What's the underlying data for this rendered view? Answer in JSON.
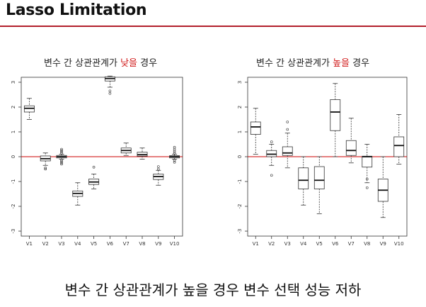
{
  "slide": {
    "title": "Lasso Limitation",
    "caption": "변수 간 상관관계가 높을 경우 변수 선택 성능 저하"
  },
  "accent_color": "#b3202c",
  "chart_data": [
    {
      "type": "box",
      "title_prefix": "변수 간 상관관계가 ",
      "title_highlight": "낮을",
      "title_suffix": " 경우",
      "categories": [
        "V1",
        "V2",
        "V3",
        "V4",
        "V5",
        "V6",
        "V7",
        "V8",
        "V9",
        "V10"
      ],
      "yticks": [
        -3,
        -2,
        -1,
        0,
        1,
        2,
        3
      ],
      "ylim": [
        -3.2,
        3.2
      ],
      "reference_line": 0,
      "reference_color": "#cc0000",
      "boxes": [
        {
          "whislo": 1.5,
          "q1": 1.8,
          "med": 1.95,
          "q3": 2.05,
          "whishi": 2.35,
          "fliers": []
        },
        {
          "whislo": -0.35,
          "q1": -0.17,
          "med": -0.08,
          "q3": 0.03,
          "whishi": 0.15,
          "fliers": [
            -0.45,
            -0.5
          ]
        },
        {
          "whislo": -0.1,
          "q1": -0.05,
          "med": 0.0,
          "q3": 0.05,
          "whishi": 0.1,
          "fliers": [
            0.15,
            0.2,
            0.25,
            0.3,
            -0.15,
            -0.2,
            -0.25,
            -0.3
          ]
        },
        {
          "whislo": -1.95,
          "q1": -1.6,
          "med": -1.48,
          "q3": -1.38,
          "whishi": -1.05,
          "fliers": []
        },
        {
          "whislo": -1.3,
          "q1": -1.12,
          "med": -1.02,
          "q3": -0.9,
          "whishi": -0.7,
          "fliers": [
            -0.42
          ]
        },
        {
          "whislo": 2.8,
          "q1": 3.05,
          "med": 3.15,
          "q3": 3.22,
          "whishi": 3.25,
          "fliers": [
            2.65,
            2.55
          ]
        },
        {
          "whislo": 0.05,
          "q1": 0.15,
          "med": 0.25,
          "q3": 0.35,
          "whishi": 0.55,
          "fliers": []
        },
        {
          "whislo": -0.1,
          "q1": 0.02,
          "med": 0.08,
          "q3": 0.18,
          "whishi": 0.35,
          "fliers": []
        },
        {
          "whislo": -1.15,
          "q1": -0.92,
          "med": -0.8,
          "q3": -0.7,
          "whishi": -0.55,
          "fliers": [
            -0.4,
            -0.5
          ]
        },
        {
          "whislo": -0.1,
          "q1": -0.05,
          "med": 0.0,
          "q3": 0.04,
          "whishi": 0.1,
          "fliers": [
            0.15,
            0.22,
            0.3,
            0.38,
            -0.15,
            -0.22
          ]
        }
      ]
    },
    {
      "type": "box",
      "title_prefix": "변수 간 상관관계가 ",
      "title_highlight": "높을",
      "title_suffix": " 경우",
      "categories": [
        "V1",
        "V2",
        "V3",
        "V4",
        "V5",
        "V6",
        "V7",
        "V8",
        "V9",
        "V10"
      ],
      "yticks": [
        -3,
        -2,
        -1,
        0,
        1,
        2,
        3
      ],
      "ylim": [
        -3.2,
        3.2
      ],
      "reference_line": 0,
      "reference_color": "#cc0000",
      "boxes": [
        {
          "whislo": 0.1,
          "q1": 0.9,
          "med": 1.2,
          "q3": 1.4,
          "whishi": 1.95,
          "fliers": []
        },
        {
          "whislo": -0.35,
          "q1": 0.0,
          "med": 0.1,
          "q3": 0.25,
          "whishi": 0.5,
          "fliers": [
            -0.75,
            0.6
          ]
        },
        {
          "whislo": -0.45,
          "q1": 0.05,
          "med": 0.15,
          "q3": 0.4,
          "whishi": 0.95,
          "fliers": [
            1.1,
            1.4
          ]
        },
        {
          "whislo": -1.95,
          "q1": -1.3,
          "med": -0.95,
          "q3": -0.45,
          "whishi": 0.0,
          "fliers": []
        },
        {
          "whislo": -2.3,
          "q1": -1.3,
          "med": -0.95,
          "q3": -0.4,
          "whishi": 0.0,
          "fliers": []
        },
        {
          "whislo": 0.0,
          "q1": 1.05,
          "med": 1.8,
          "q3": 2.3,
          "whishi": 2.95,
          "fliers": []
        },
        {
          "whislo": -0.25,
          "q1": 0.05,
          "med": 0.25,
          "q3": 0.65,
          "whishi": 1.55,
          "fliers": []
        },
        {
          "whislo": -1.05,
          "q1": -0.42,
          "med": 0.0,
          "q3": 0.02,
          "whishi": 0.5,
          "fliers": [
            -1.25,
            -0.9
          ]
        },
        {
          "whislo": -2.45,
          "q1": -1.8,
          "med": -1.35,
          "q3": -0.9,
          "whishi": 0.0,
          "fliers": []
        },
        {
          "whislo": -0.3,
          "q1": 0.0,
          "med": 0.45,
          "q3": 0.8,
          "whishi": 1.7,
          "fliers": []
        }
      ]
    }
  ]
}
